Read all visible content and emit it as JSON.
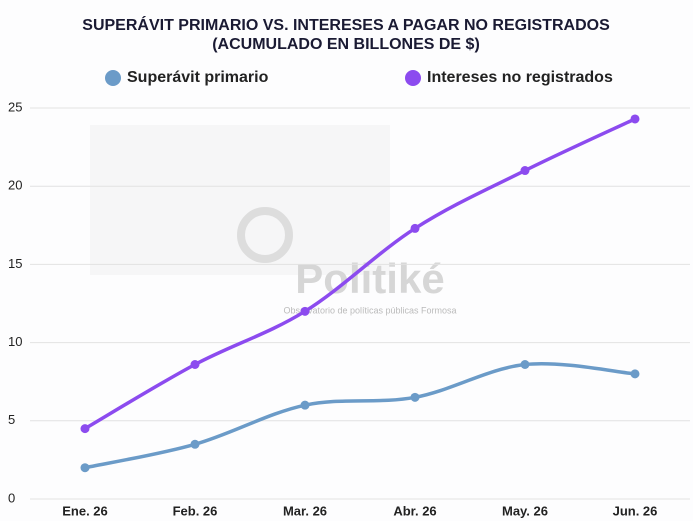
{
  "chart_data": {
    "type": "line",
    "title": "SUPERÁVIT PRIMARIO VS. INTERESES A PAGAR NO REGISTRADOS",
    "subtitle": "(ACUMULADO EN BILLONES DE $)",
    "annotations": [
      "Politiké",
      "Observatorio de políticas públicas Formosa"
    ],
    "categories": [
      "Ene. 26",
      "Feb. 26",
      "Mar. 26",
      "Abr. 26",
      "May. 26",
      "Jun. 26"
    ],
    "series": [
      {
        "name": "Superávit primario",
        "color": "#6b9bc8",
        "values": [
          2.0,
          3.5,
          6.0,
          6.5,
          8.6,
          8.0
        ]
      },
      {
        "name": "Intereses no registrados",
        "color": "#8c4bef",
        "values": [
          4.5,
          8.6,
          12.0,
          17.3,
          21.0,
          24.3
        ]
      }
    ],
    "ylim": [
      0,
      25
    ],
    "yticks": [
      0,
      5,
      10,
      15,
      20,
      25
    ],
    "grid": true
  }
}
